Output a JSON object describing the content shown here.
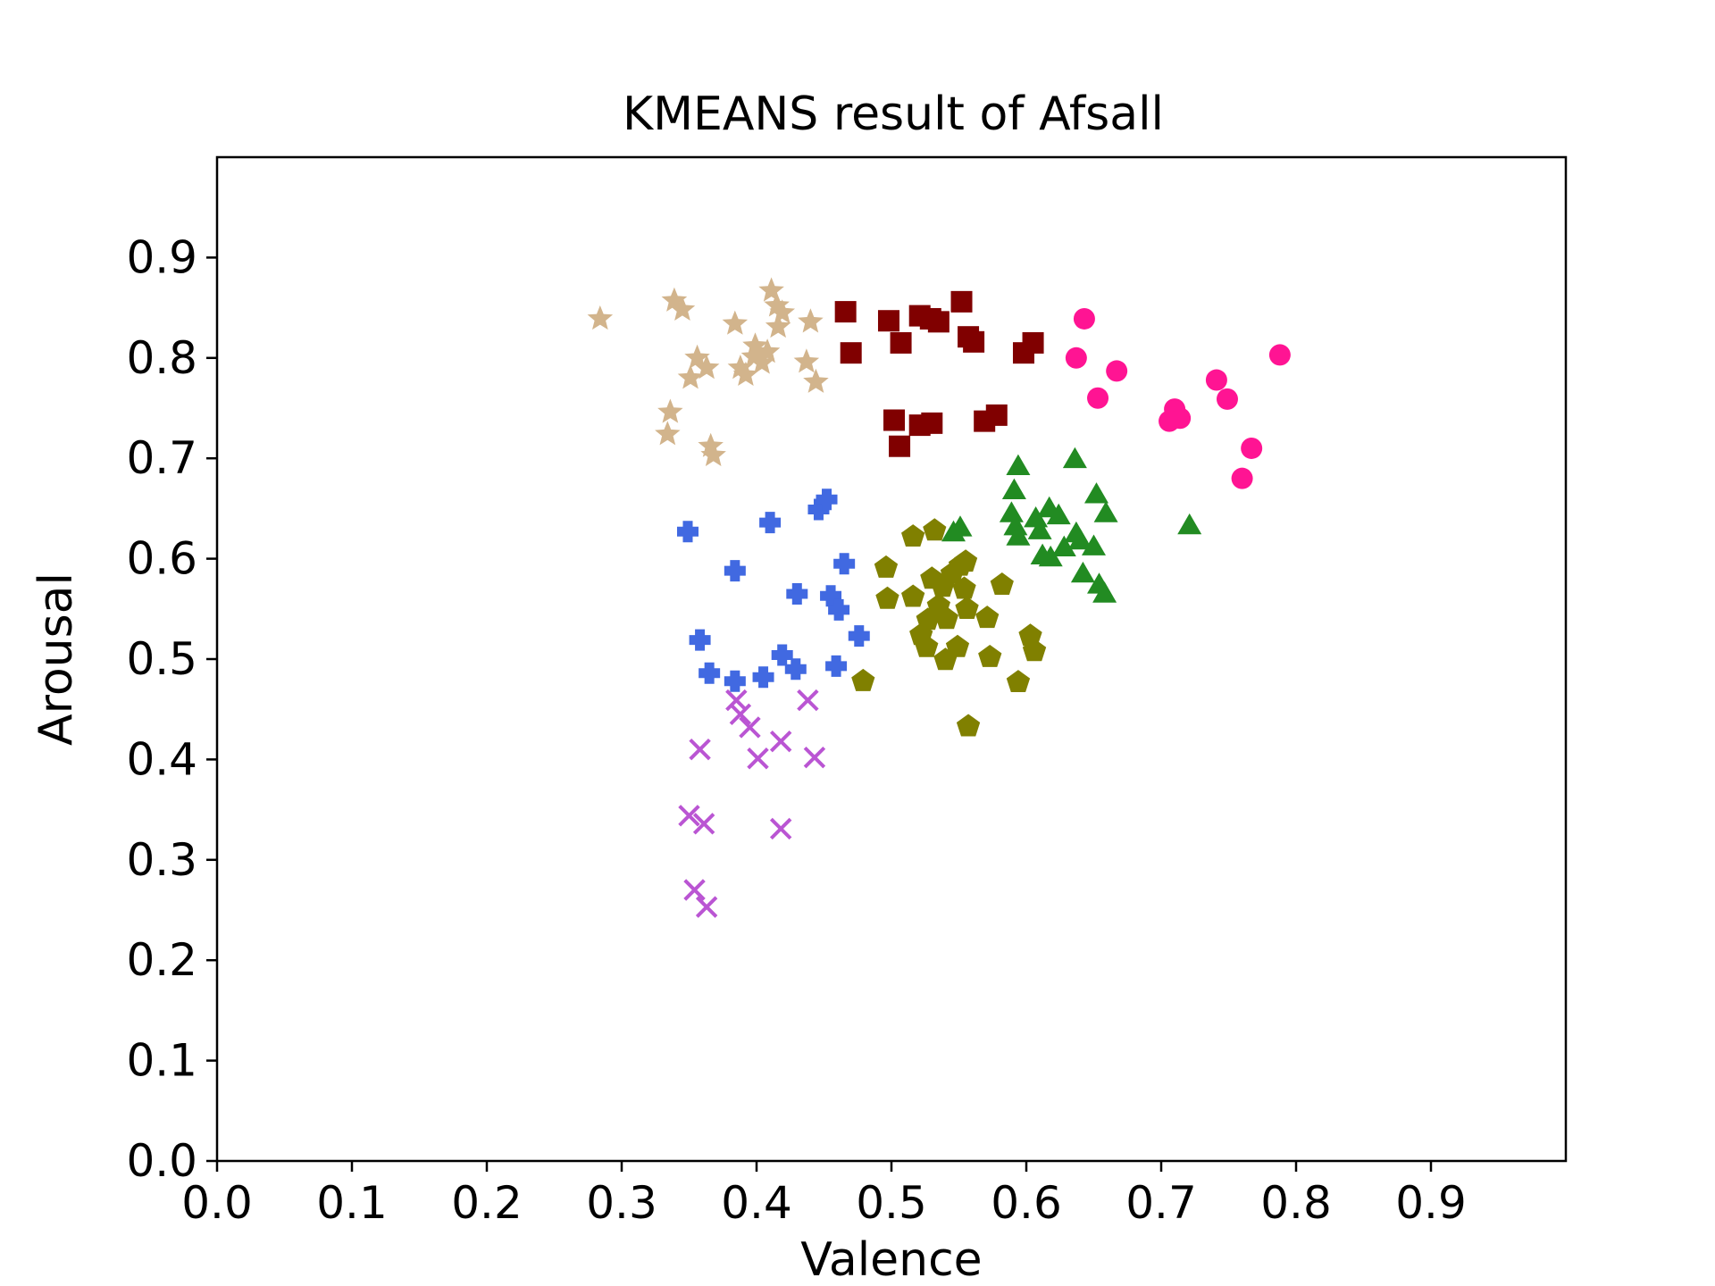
{
  "chart_data": {
    "type": "scatter",
    "title": "KMEANS result of Afsall",
    "xlabel": "Valence",
    "ylabel": "Arousal",
    "xlim": [
      0.0,
      1.0
    ],
    "ylim": [
      0.0,
      1.0
    ],
    "xticks": [
      "0.0",
      "0.1",
      "0.2",
      "0.3",
      "0.4",
      "0.5",
      "0.6",
      "0.7",
      "0.8",
      "0.9"
    ],
    "yticks": [
      "0.0",
      "0.1",
      "0.2",
      "0.3",
      "0.4",
      "0.5",
      "0.6",
      "0.7",
      "0.8",
      "0.9"
    ],
    "grid": false,
    "legend": "none",
    "series": [
      {
        "marker": "star",
        "color": "#d2b48c",
        "points": [
          [
            0.284,
            0.839
          ],
          [
            0.339,
            0.857
          ],
          [
            0.345,
            0.848
          ],
          [
            0.351,
            0.78
          ],
          [
            0.356,
            0.8
          ],
          [
            0.363,
            0.79
          ],
          [
            0.336,
            0.746
          ],
          [
            0.334,
            0.724
          ],
          [
            0.366,
            0.712
          ],
          [
            0.368,
            0.703
          ],
          [
            0.384,
            0.834
          ],
          [
            0.399,
            0.812
          ],
          [
            0.408,
            0.806
          ],
          [
            0.411,
            0.867
          ],
          [
            0.415,
            0.852
          ],
          [
            0.419,
            0.845
          ],
          [
            0.416,
            0.831
          ],
          [
            0.388,
            0.79
          ],
          [
            0.392,
            0.783
          ],
          [
            0.398,
            0.801
          ],
          [
            0.404,
            0.795
          ],
          [
            0.44,
            0.836
          ],
          [
            0.437,
            0.796
          ],
          [
            0.444,
            0.776
          ]
        ]
      },
      {
        "marker": "square",
        "color": "#800000",
        "points": [
          [
            0.466,
            0.846
          ],
          [
            0.47,
            0.805
          ],
          [
            0.498,
            0.837
          ],
          [
            0.507,
            0.815
          ],
          [
            0.521,
            0.842
          ],
          [
            0.529,
            0.839
          ],
          [
            0.535,
            0.836
          ],
          [
            0.552,
            0.856
          ],
          [
            0.557,
            0.821
          ],
          [
            0.561,
            0.816
          ],
          [
            0.598,
            0.805
          ],
          [
            0.605,
            0.815
          ],
          [
            0.502,
            0.738
          ],
          [
            0.506,
            0.712
          ],
          [
            0.521,
            0.733
          ],
          [
            0.53,
            0.735
          ],
          [
            0.569,
            0.737
          ],
          [
            0.578,
            0.743
          ]
        ]
      },
      {
        "marker": "circle",
        "color": "#ff1493",
        "points": [
          [
            0.643,
            0.839
          ],
          [
            0.637,
            0.8
          ],
          [
            0.653,
            0.76
          ],
          [
            0.667,
            0.787
          ],
          [
            0.71,
            0.749
          ],
          [
            0.714,
            0.74
          ],
          [
            0.706,
            0.737
          ],
          [
            0.741,
            0.778
          ],
          [
            0.749,
            0.759
          ],
          [
            0.767,
            0.71
          ],
          [
            0.76,
            0.68
          ],
          [
            0.788,
            0.803
          ]
        ]
      },
      {
        "marker": "triangle",
        "color": "#228b22",
        "points": [
          [
            0.551,
            0.631
          ],
          [
            0.546,
            0.626
          ],
          [
            0.594,
            0.692
          ],
          [
            0.591,
            0.668
          ],
          [
            0.636,
            0.699
          ],
          [
            0.589,
            0.645
          ],
          [
            0.592,
            0.632
          ],
          [
            0.594,
            0.622
          ],
          [
            0.607,
            0.64
          ],
          [
            0.61,
            0.628
          ],
          [
            0.617,
            0.65
          ],
          [
            0.624,
            0.643
          ],
          [
            0.612,
            0.603
          ],
          [
            0.618,
            0.601
          ],
          [
            0.628,
            0.611
          ],
          [
            0.637,
            0.625
          ],
          [
            0.64,
            0.618
          ],
          [
            0.65,
            0.612
          ],
          [
            0.652,
            0.664
          ],
          [
            0.659,
            0.645
          ],
          [
            0.642,
            0.585
          ],
          [
            0.654,
            0.574
          ],
          [
            0.658,
            0.565
          ],
          [
            0.721,
            0.633
          ]
        ]
      },
      {
        "marker": "pentagon",
        "color": "#808000",
        "points": [
          [
            0.479,
            0.478
          ],
          [
            0.496,
            0.591
          ],
          [
            0.497,
            0.56
          ],
          [
            0.516,
            0.622
          ],
          [
            0.516,
            0.562
          ],
          [
            0.522,
            0.524
          ],
          [
            0.526,
            0.512
          ],
          [
            0.527,
            0.539
          ],
          [
            0.53,
            0.58
          ],
          [
            0.532,
            0.628
          ],
          [
            0.535,
            0.553
          ],
          [
            0.538,
            0.572
          ],
          [
            0.541,
            0.54
          ],
          [
            0.54,
            0.499
          ],
          [
            0.545,
            0.585
          ],
          [
            0.549,
            0.512
          ],
          [
            0.551,
            0.593
          ],
          [
            0.554,
            0.57
          ],
          [
            0.555,
            0.597
          ],
          [
            0.556,
            0.55
          ],
          [
            0.557,
            0.433
          ],
          [
            0.571,
            0.541
          ],
          [
            0.573,
            0.502
          ],
          [
            0.582,
            0.574
          ],
          [
            0.594,
            0.477
          ],
          [
            0.603,
            0.523
          ],
          [
            0.606,
            0.508
          ]
        ]
      },
      {
        "marker": "plus",
        "color": "#4169e1",
        "points": [
          [
            0.349,
            0.627
          ],
          [
            0.358,
            0.519
          ],
          [
            0.365,
            0.486
          ],
          [
            0.384,
            0.478
          ],
          [
            0.384,
            0.588
          ],
          [
            0.405,
            0.482
          ],
          [
            0.41,
            0.636
          ],
          [
            0.419,
            0.504
          ],
          [
            0.429,
            0.49
          ],
          [
            0.43,
            0.565
          ],
          [
            0.446,
            0.649
          ],
          [
            0.452,
            0.659
          ],
          [
            0.455,
            0.563
          ],
          [
            0.459,
            0.493
          ],
          [
            0.461,
            0.549
          ],
          [
            0.465,
            0.595
          ],
          [
            0.476,
            0.523
          ]
        ]
      },
      {
        "marker": "x",
        "color": "#ba55d3",
        "points": [
          [
            0.35,
            0.344
          ],
          [
            0.358,
            0.41
          ],
          [
            0.361,
            0.336
          ],
          [
            0.354,
            0.27
          ],
          [
            0.363,
            0.253
          ],
          [
            0.385,
            0.459
          ],
          [
            0.388,
            0.445
          ],
          [
            0.395,
            0.432
          ],
          [
            0.401,
            0.401
          ],
          [
            0.418,
            0.418
          ],
          [
            0.418,
            0.331
          ],
          [
            0.438,
            0.459
          ],
          [
            0.443,
            0.402
          ]
        ]
      }
    ]
  }
}
